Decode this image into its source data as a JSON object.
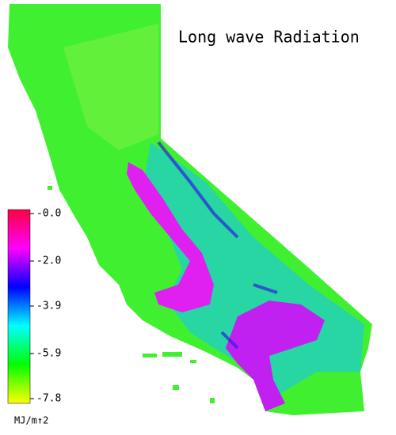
{
  "title": "Long wave Radiation",
  "colorbar": {
    "lim": [
      -7.8,
      0
    ],
    "colormap": [
      "#ffff00",
      "#00ff00",
      "#00ffff",
      "#0000ff",
      "#ff00ff",
      "#ff0040"
    ],
    "ticks": [
      {
        "value": 0,
        "label": "-0.0"
      },
      {
        "value": -2.0,
        "label": "-2.0"
      },
      {
        "value": -3.9,
        "label": "-3.9"
      },
      {
        "value": -5.9,
        "label": "-5.9"
      },
      {
        "value": -7.8,
        "label": "-7.8"
      }
    ],
    "unit": "MJ/m↑2"
  }
}
